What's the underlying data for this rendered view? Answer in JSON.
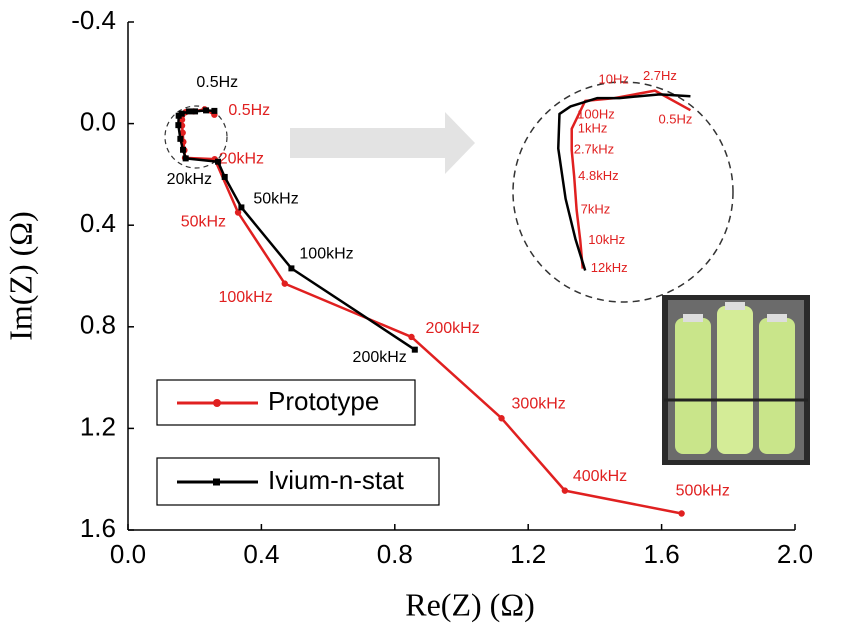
{
  "chart_data": [
    {
      "type": "line",
      "xlabel": "Re(Z) (Ω)",
      "ylabel": "Im(Z) (Ω)",
      "xlim": [
        0,
        2.0
      ],
      "xticks": [
        {
          "value": 0,
          "label": "0.0"
        },
        0.4,
        0.8,
        1.2,
        1.6,
        {
          "value": 2.0,
          "label": "2.0"
        }
      ],
      "ylim": [
        -0.4,
        1.6
      ],
      "yticks": [
        -0.4,
        {
          "value": 0,
          "label": "0.0"
        },
        0.4,
        0.8,
        1.2,
        1.6
      ],
      "y_inverted": true,
      "legend": "lower left",
      "series": [
        {
          "name": "Prototype",
          "color": "#e02020",
          "marker": "circle",
          "x": [
            0.259,
            0.23,
            0.197,
            0.173,
            0.162,
            0.162,
            0.164,
            0.166,
            0.169,
            0.171,
            0.26,
            0.33,
            0.47,
            0.85,
            1.12,
            1.31,
            1.66
          ],
          "values": [
            -0.035,
            -0.056,
            -0.048,
            -0.045,
            -0.015,
            0.008,
            0.036,
            0.072,
            0.105,
            0.135,
            0.14,
            0.35,
            0.63,
            0.84,
            1.16,
            1.445,
            1.535
          ],
          "point_labels": [
            "0.5Hz",
            null,
            null,
            null,
            null,
            null,
            null,
            null,
            null,
            null,
            "20kHz",
            "50kHz",
            "100kHz",
            "200kHz",
            "300kHz",
            "400kHz",
            "500kHz"
          ]
        },
        {
          "name": "Ivium-n-stat",
          "color": "#000000",
          "marker": "square",
          "x": [
            0.259,
            0.234,
            0.201,
            0.183,
            0.161,
            0.152,
            0.151,
            0.157,
            0.165,
            0.173,
            0.27,
            0.29,
            0.34,
            0.49,
            0.86
          ],
          "values": [
            -0.05,
            -0.052,
            -0.048,
            -0.048,
            -0.039,
            -0.031,
            0.006,
            0.06,
            0.103,
            0.137,
            0.15,
            0.21,
            0.33,
            0.57,
            0.89
          ],
          "point_labels": [
            "0.5Hz",
            null,
            null,
            null,
            null,
            null,
            null,
            null,
            null,
            null,
            "20kHz",
            null,
            "50kHz",
            "100kHz",
            "200kHz"
          ]
        }
      ]
    },
    {
      "type": "line",
      "series": [
        {
          "color": "#e02020",
          "x": [
            0.259,
            0.23,
            0.197,
            0.173,
            0.162,
            0.162,
            0.164,
            0.166,
            0.169,
            0.171
          ],
          "values": [
            -0.035,
            -0.056,
            -0.048,
            -0.045,
            -0.015,
            0.008,
            0.036,
            0.072,
            0.105,
            0.135
          ],
          "point_labels": [
            "0.5Hz",
            "2.7Hz",
            "10Hz",
            "100Hz",
            "1kHz",
            "2.7kHz",
            "4.8kHz",
            "7kHz",
            "10kHz",
            "12kHz"
          ]
        },
        {
          "color": "#000000",
          "x": [
            0.259,
            0.234,
            0.201,
            0.183,
            0.161,
            0.152,
            0.151,
            0.157,
            0.165,
            0.173
          ],
          "values": [
            -0.05,
            -0.052,
            -0.048,
            -0.048,
            -0.039,
            -0.031,
            0.006,
            0.06,
            0.103,
            0.137
          ]
        }
      ]
    }
  ]
}
